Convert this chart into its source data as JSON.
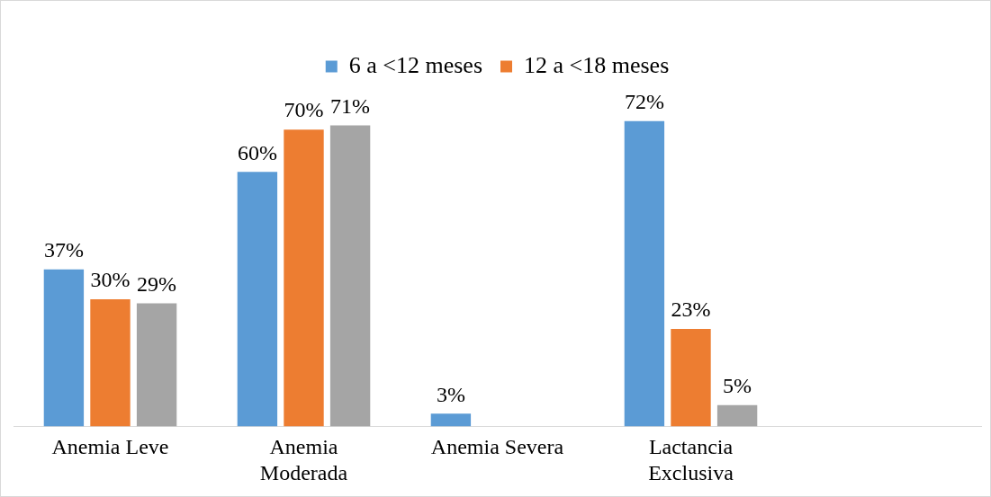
{
  "chart_data": {
    "type": "bar",
    "categories": [
      "Anemia Leve",
      "Anemia Moderada",
      "Anemia Severa",
      "Lactancia Exclusiva",
      null
    ],
    "series": [
      {
        "name": "6 a <12 meses",
        "color": "#5b9bd5",
        "values": [
          37,
          60,
          3,
          72,
          null
        ],
        "value_labels": [
          "37%",
          "60%",
          "3%",
          "72%",
          null
        ]
      },
      {
        "name": "12 a <18 meses",
        "color": "#ed7d31",
        "values": [
          30,
          70,
          null,
          23,
          null
        ],
        "value_labels": [
          "30%",
          "70%",
          null,
          "23%",
          null
        ]
      },
      {
        "color": "#a5a5a5",
        "values": [
          29,
          71,
          null,
          5,
          null
        ],
        "value_labels": [
          "29%",
          "71%",
          null,
          "5%",
          null
        ]
      }
    ],
    "tick_labels": "x",
    "grid": false,
    "legend": "top"
  }
}
